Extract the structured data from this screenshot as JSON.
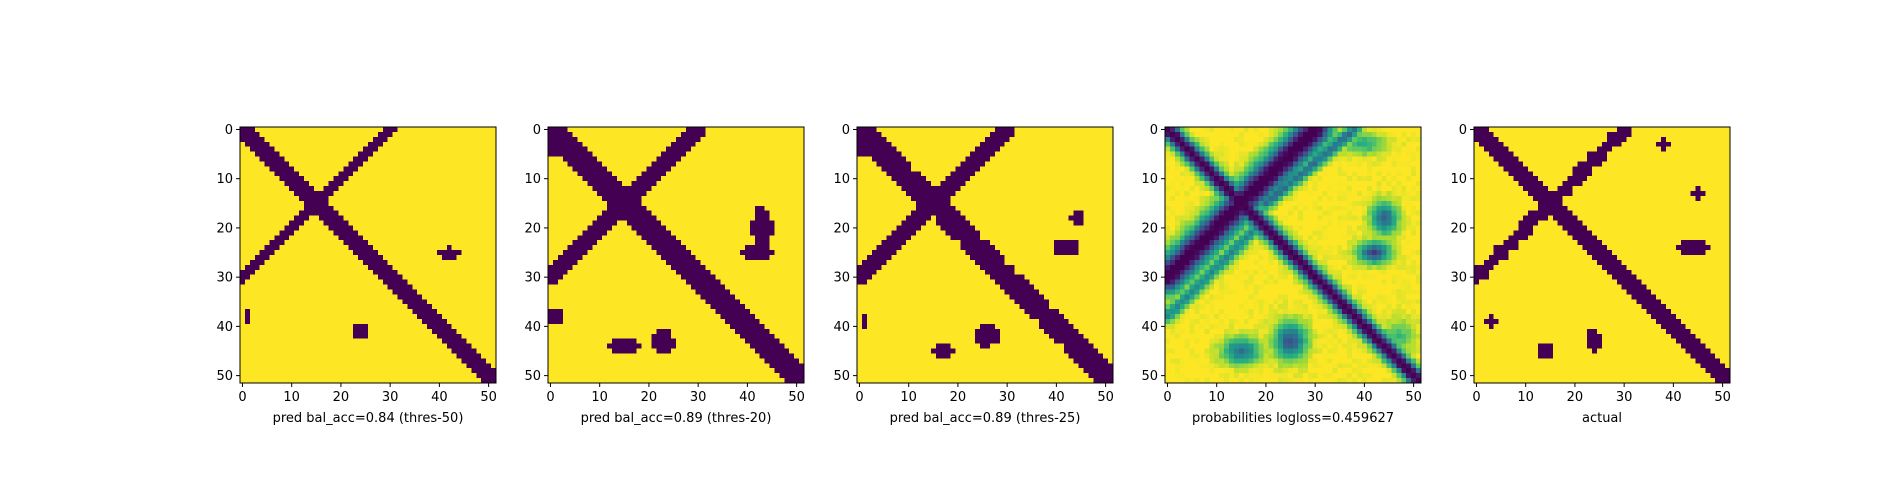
{
  "chart_data": [
    {
      "type": "heatmap",
      "title": "",
      "xlabel": "pred bal_acc=0.84 (thres-50)",
      "ylabel": "",
      "xlim": [
        0,
        52
      ],
      "ylim": [
        52,
        0
      ],
      "xticks": [
        "0",
        "10",
        "20",
        "30",
        "40",
        "50"
      ],
      "yticks": [
        "0",
        "10",
        "20",
        "30",
        "40",
        "50"
      ],
      "colormap": "viridis",
      "binary": true,
      "features": {
        "main_diagonal_width": 1.4,
        "anti_diagonal": {
          "from": [
            0,
            30
          ],
          "to": [
            30,
            0
          ],
          "width": 1.1
        },
        "blobs": [
          {
            "cx": 42,
            "cy": 25,
            "rx": 3.0,
            "ry": 1.2
          },
          {
            "cx": 24,
            "cy": 41,
            "rx": 1.8,
            "ry": 1.8
          },
          {
            "cx": 1,
            "cy": 38,
            "rx": 1.0,
            "ry": 1.2
          }
        ]
      },
      "grid": false
    },
    {
      "type": "heatmap",
      "title": "",
      "xlabel": "pred bal_acc=0.89 (thres-20)",
      "ylabel": "",
      "xlim": [
        0,
        52
      ],
      "ylim": [
        52,
        0
      ],
      "xticks": [
        "0",
        "10",
        "20",
        "30",
        "40",
        "50"
      ],
      "yticks": [
        "0",
        "10",
        "20",
        "30",
        "40",
        "50"
      ],
      "colormap": "viridis",
      "binary": true,
      "features": {
        "main_diagonal_width": 2.2,
        "anti_diagonal": {
          "from": [
            0,
            30
          ],
          "to": [
            30,
            0
          ],
          "width": 1.6
        },
        "blobs": [
          {
            "cx": 43,
            "cy": 20,
            "rx": 2.5,
            "ry": 5.0
          },
          {
            "cx": 42,
            "cy": 25,
            "rx": 3.5,
            "ry": 2.0
          },
          {
            "cx": 15,
            "cy": 44,
            "rx": 3.5,
            "ry": 1.8
          },
          {
            "cx": 23,
            "cy": 43,
            "rx": 2.5,
            "ry": 3.0
          },
          {
            "cx": 1,
            "cy": 38,
            "rx": 1.5,
            "ry": 2.0
          },
          {
            "cx": 1,
            "cy": 3,
            "rx": 3.0,
            "ry": 3.0
          }
        ]
      },
      "grid": false
    },
    {
      "type": "heatmap",
      "title": "",
      "xlabel": "pred bal_acc=0.89 (thres-25)",
      "ylabel": "",
      "xlim": [
        0,
        52
      ],
      "ylim": [
        52,
        0
      ],
      "xticks": [
        "0",
        "10",
        "20",
        "30",
        "40",
        "50"
      ],
      "yticks": [
        "0",
        "10",
        "20",
        "30",
        "40",
        "50"
      ],
      "colormap": "viridis",
      "binary": true,
      "features": {
        "main_diagonal_width": 1.9,
        "anti_diagonal": {
          "from": [
            0,
            30
          ],
          "to": [
            30,
            0
          ],
          "width": 1.4
        },
        "blobs": [
          {
            "cx": 44,
            "cy": 18,
            "rx": 1.5,
            "ry": 1.8
          },
          {
            "cx": 42,
            "cy": 24,
            "rx": 3.0,
            "ry": 1.8
          },
          {
            "cx": 17,
            "cy": 45,
            "rx": 2.5,
            "ry": 1.5
          },
          {
            "cx": 26,
            "cy": 42,
            "rx": 2.5,
            "ry": 2.5
          },
          {
            "cx": 1,
            "cy": 39,
            "rx": 1.0,
            "ry": 1.5
          },
          {
            "cx": 1,
            "cy": 3,
            "rx": 2.5,
            "ry": 2.5
          }
        ]
      },
      "grid": false
    },
    {
      "type": "heatmap",
      "title": "",
      "xlabel": "probabilities logloss=0.459627",
      "ylabel": "",
      "xlim": [
        0,
        52
      ],
      "ylim": [
        52,
        0
      ],
      "xticks": [
        "0",
        "10",
        "20",
        "30",
        "40",
        "50"
      ],
      "yticks": [
        "0",
        "10",
        "20",
        "30",
        "40",
        "50"
      ],
      "colormap": "viridis",
      "binary": false,
      "features": {
        "main_diagonal_width": 1.3,
        "anti_diagonal": {
          "from": [
            0,
            30
          ],
          "to": [
            30,
            0
          ],
          "width": 2.4
        },
        "secondary_diagonals": [
          {
            "from": [
              20,
              15
            ],
            "to": [
              38,
              0
            ],
            "width": 1.0,
            "strength": 0.6
          },
          {
            "from": [
              0,
              38
            ],
            "to": [
              18,
              20
            ],
            "width": 1.0,
            "strength": 0.5
          }
        ],
        "blobs": [
          {
            "cx": 44,
            "cy": 18,
            "rx": 2.5,
            "ry": 3.0,
            "strength": 0.65
          },
          {
            "cx": 42,
            "cy": 25,
            "rx": 3.0,
            "ry": 2.0,
            "strength": 0.75
          },
          {
            "cx": 15,
            "cy": 45,
            "rx": 3.5,
            "ry": 2.5,
            "strength": 0.6
          },
          {
            "cx": 25,
            "cy": 43,
            "rx": 3.0,
            "ry": 3.5,
            "strength": 0.7
          },
          {
            "cx": 40,
            "cy": 3,
            "rx": 4.0,
            "ry": 2.0,
            "strength": 0.35
          },
          {
            "cx": 47,
            "cy": 42,
            "rx": 3.0,
            "ry": 3.0,
            "strength": 0.3
          }
        ]
      },
      "grid": false
    },
    {
      "type": "heatmap",
      "title": "",
      "xlabel": "actual",
      "ylabel": "",
      "xlim": [
        0,
        52
      ],
      "ylim": [
        52,
        0
      ],
      "xticks": [
        "0",
        "10",
        "20",
        "30",
        "40",
        "50"
      ],
      "yticks": [
        "0",
        "10",
        "20",
        "30",
        "40",
        "50"
      ],
      "colormap": "viridis",
      "binary": true,
      "features": {
        "main_diagonal_width": 1.6,
        "anti_diagonal": {
          "from": [
            0,
            30
          ],
          "to": [
            30,
            0
          ],
          "width": 1.2
        },
        "blobs": [
          {
            "cx": 38,
            "cy": 3,
            "rx": 1.2,
            "ry": 1.5
          },
          {
            "cx": 45,
            "cy": 13,
            "rx": 1.5,
            "ry": 1.5
          },
          {
            "cx": 44,
            "cy": 24,
            "rx": 3.5,
            "ry": 1.5
          },
          {
            "cx": 14,
            "cy": 45,
            "rx": 2.0,
            "ry": 1.5
          },
          {
            "cx": 24,
            "cy": 43,
            "rx": 2.0,
            "ry": 2.5
          },
          {
            "cx": 3,
            "cy": 39,
            "rx": 1.5,
            "ry": 1.5
          }
        ]
      },
      "grid": false
    }
  ],
  "colors": {
    "low": "#440154",
    "high": "#fde725"
  }
}
